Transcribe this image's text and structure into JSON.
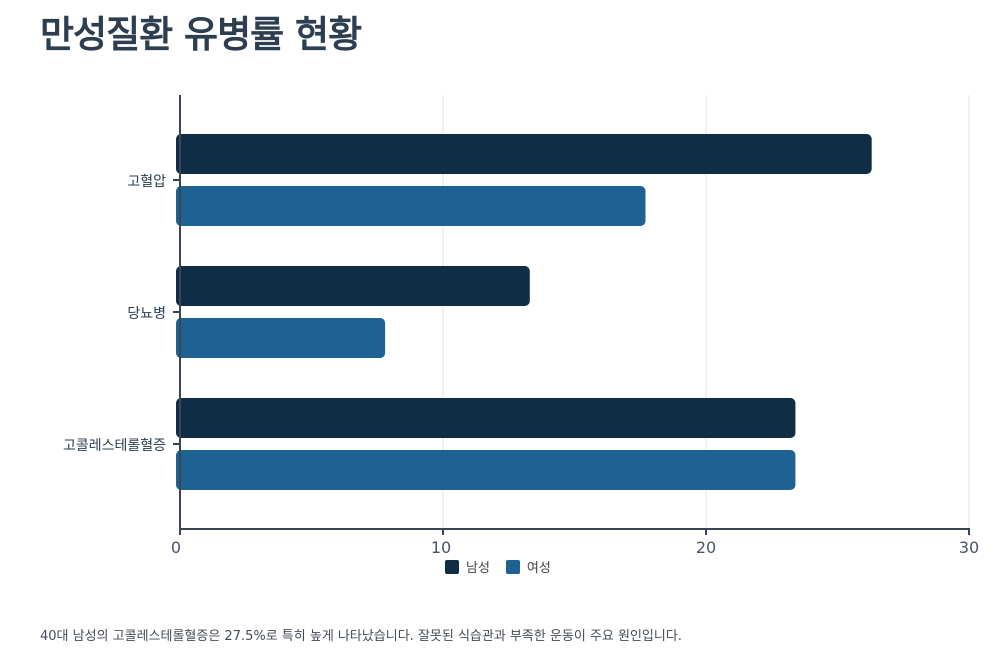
{
  "header": {
    "title": "만성질환 유병률 현황"
  },
  "chart_data": {
    "type": "bar",
    "orientation": "horizontal",
    "title": "만성질환 유병률 현황",
    "categories": [
      "고혈압",
      "당뇨병",
      "고콜레스테롤혈증"
    ],
    "series": [
      {
        "name": "남성",
        "color": "#0f2d44",
        "values": [
          26.3,
          13.3,
          23.4
        ]
      },
      {
        "name": "여성",
        "color": "#1d6293",
        "values": [
          17.7,
          7.8,
          23.4
        ]
      }
    ],
    "xlabel": "",
    "ylabel": "",
    "xlim": [
      0,
      30
    ],
    "xticks": [
      "0",
      "10",
      "20",
      "30"
    ],
    "grid": true,
    "legend_position": "bottom"
  },
  "legend": {
    "items": [
      {
        "label": "남성"
      },
      {
        "label": "여성"
      }
    ]
  },
  "axis": {
    "ticks": [
      "0",
      "10",
      "20",
      "30"
    ],
    "categories": [
      "고혈압",
      "당뇨병",
      "고콜레스테롤혈증"
    ]
  },
  "caption": "40대 남성의 고콜레스테롤혈증은 27.5%로 특히 높게 나타났습니다. 잘못된 식습관과 부족한 운동이 주요 원인입니다."
}
